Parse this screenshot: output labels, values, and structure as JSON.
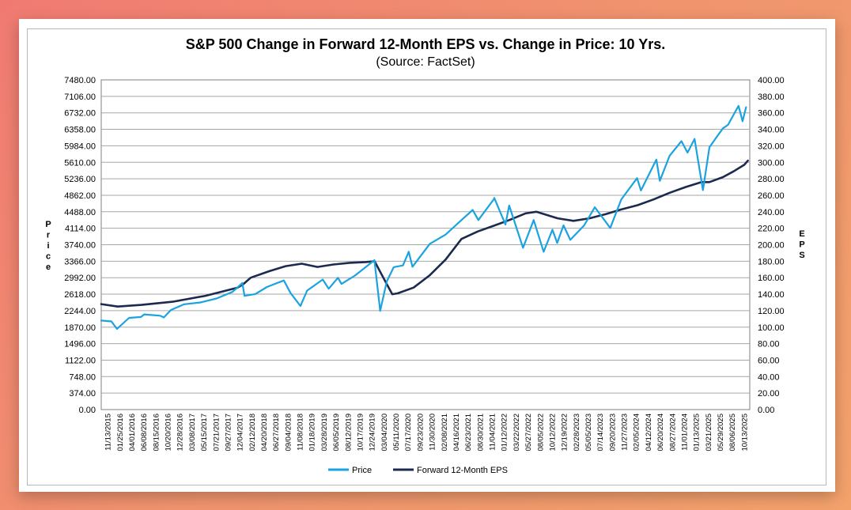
{
  "chart_data": {
    "type": "line",
    "title": "S&P 500 Change in Forward 12-Month EPS vs. Change in Price: 10 Yrs.",
    "subtitle": "(Source: FactSet)",
    "ylabel": "Price",
    "y2label": "EPS",
    "ylim": [
      0,
      7480
    ],
    "y2lim": [
      0,
      400
    ],
    "y_ticks": [
      "0.00",
      "374.00",
      "748.00",
      "1122.00",
      "1496.00",
      "1870.00",
      "2244.00",
      "2618.00",
      "2992.00",
      "3366.00",
      "3740.00",
      "4114.00",
      "4488.00",
      "4862.00",
      "5236.00",
      "5610.00",
      "5984.00",
      "6358.00",
      "6732.00",
      "7106.00",
      "7480.00"
    ],
    "y2_ticks": [
      "0.00",
      "20.00",
      "40.00",
      "60.00",
      "80.00",
      "100.00",
      "120.00",
      "140.00",
      "160.00",
      "180.00",
      "200.00",
      "220.00",
      "240.00",
      "260.00",
      "280.00",
      "300.00",
      "320.00",
      "340.00",
      "360.00",
      "380.00",
      "400.00"
    ],
    "x_range": [
      "2015-11-13",
      "2025-12-31"
    ],
    "x_ticks": [
      "11/13/2015",
      "01/25/2016",
      "04/01/2016",
      "06/08/2016",
      "08/15/2016",
      "10/20/2016",
      "12/28/2016",
      "03/08/2017",
      "05/15/2017",
      "07/21/2017",
      "09/27/2017",
      "12/04/2017",
      "02/12/2018",
      "04/20/2018",
      "06/27/2018",
      "09/04/2018",
      "11/08/2018",
      "01/18/2019",
      "03/28/2019",
      "06/05/2019",
      "08/12/2019",
      "10/17/2019",
      "12/24/2019",
      "03/04/2020",
      "05/11/2020",
      "07/17/2020",
      "09/23/2020",
      "11/30/2020",
      "02/08/2021",
      "04/16/2021",
      "06/23/2021",
      "08/30/2021",
      "11/04/2021",
      "01/12/2022",
      "03/22/2022",
      "05/27/2022",
      "08/05/2022",
      "10/12/2022",
      "12/19/2022",
      "02/28/2023",
      "05/05/2023",
      "07/14/2023",
      "09/20/2023",
      "11/27/2023",
      "02/05/2024",
      "04/12/2024",
      "06/20/2024",
      "08/27/2024",
      "11/01/2024",
      "01/13/2025",
      "03/21/2025",
      "05/29/2025",
      "08/06/2025",
      "10/13/2025"
    ],
    "legend": [
      "Price",
      "Forward 12-Month EPS"
    ],
    "legend_position": "bottom",
    "series": [
      {
        "name": "Price",
        "axis": "left",
        "color": "#1aa3e0",
        "x": [
          "2015-11-13",
          "2016-01-10",
          "2016-02-11",
          "2016-04-20",
          "2016-06-27",
          "2016-07-15",
          "2016-10-15",
          "2016-11-04",
          "2016-12-15",
          "2017-03-01",
          "2017-06-01",
          "2017-09-01",
          "2017-12-01",
          "2018-01-26",
          "2018-02-08",
          "2018-04-10",
          "2018-06-15",
          "2018-09-20",
          "2018-10-29",
          "2018-12-24",
          "2019-01-31",
          "2019-04-30",
          "2019-06-03",
          "2019-07-26",
          "2019-08-15",
          "2019-10-31",
          "2019-12-31",
          "2020-02-19",
          "2020-03-23",
          "2020-04-30",
          "2020-06-08",
          "2020-07-31",
          "2020-09-02",
          "2020-09-23",
          "2020-12-31",
          "2021-03-31",
          "2021-06-30",
          "2021-09-02",
          "2021-10-04",
          "2021-12-31",
          "2022-01-03",
          "2022-03-08",
          "2022-03-29",
          "2022-06-16",
          "2022-08-16",
          "2022-10-12",
          "2022-12-01",
          "2022-12-28",
          "2023-02-02",
          "2023-03-13",
          "2023-05-31",
          "2023-07-31",
          "2023-10-27",
          "2023-12-29",
          "2024-03-28",
          "2024-04-19",
          "2024-07-16",
          "2024-08-05",
          "2024-09-30",
          "2024-12-06",
          "2025-01-10",
          "2025-02-19",
          "2025-04-08",
          "2025-05-15",
          "2025-06-30",
          "2025-07-31",
          "2025-08-29",
          "2025-09-30",
          "2025-10-28",
          "2025-11-20",
          "2025-12-10"
        ],
        "values": [
          2020,
          2000,
          1830,
          2080,
          2100,
          2160,
          2130,
          2090,
          2260,
          2390,
          2430,
          2520,
          2670,
          2870,
          2580,
          2620,
          2780,
          2930,
          2640,
          2350,
          2700,
          2950,
          2740,
          2990,
          2850,
          3040,
          3230,
          3390,
          2240,
          2910,
          3230,
          3270,
          3580,
          3240,
          3760,
          3970,
          4300,
          4530,
          4300,
          4770,
          4800,
          4200,
          4630,
          3670,
          4300,
          3580,
          4080,
          3780,
          4180,
          3850,
          4180,
          4590,
          4120,
          4770,
          5250,
          4970,
          5670,
          5190,
          5760,
          6090,
          5830,
          6140,
          4980,
          5950,
          6210,
          6380,
          6460,
          6690,
          6890,
          6540,
          6860
        ]
      },
      {
        "name": "Forward 12-Month EPS",
        "axis": "right",
        "color": "#1c2a4f",
        "x": [
          "2015-11-13",
          "2016-02-15",
          "2016-06-30",
          "2016-12-31",
          "2017-06-30",
          "2017-12-31",
          "2018-01-31",
          "2018-03-15",
          "2018-06-30",
          "2018-09-30",
          "2018-12-31",
          "2019-03-31",
          "2019-06-30",
          "2019-09-30",
          "2019-12-31",
          "2020-02-20",
          "2020-04-15",
          "2020-05-31",
          "2020-06-30",
          "2020-09-30",
          "2020-12-31",
          "2021-03-31",
          "2021-06-30",
          "2021-09-30",
          "2021-12-31",
          "2022-03-31",
          "2022-06-30",
          "2022-08-31",
          "2022-10-31",
          "2022-12-31",
          "2023-03-31",
          "2023-06-30",
          "2023-09-30",
          "2023-12-31",
          "2024-03-31",
          "2024-06-30",
          "2024-09-30",
          "2024-12-31",
          "2025-03-31",
          "2025-05-15",
          "2025-07-31",
          "2025-09-30",
          "2025-11-30",
          "2025-12-20"
        ],
        "values": [
          128,
          125,
          127,
          131,
          138,
          148,
          152,
          160,
          168,
          174,
          177,
          173,
          176,
          178,
          179,
          180,
          158,
          140,
          141,
          148,
          163,
          182,
          207,
          216,
          223,
          230,
          238,
          240,
          236,
          232,
          229,
          232,
          237,
          243,
          248,
          255,
          263,
          270,
          276,
          276,
          282,
          289,
          297,
          302
        ]
      }
    ]
  }
}
